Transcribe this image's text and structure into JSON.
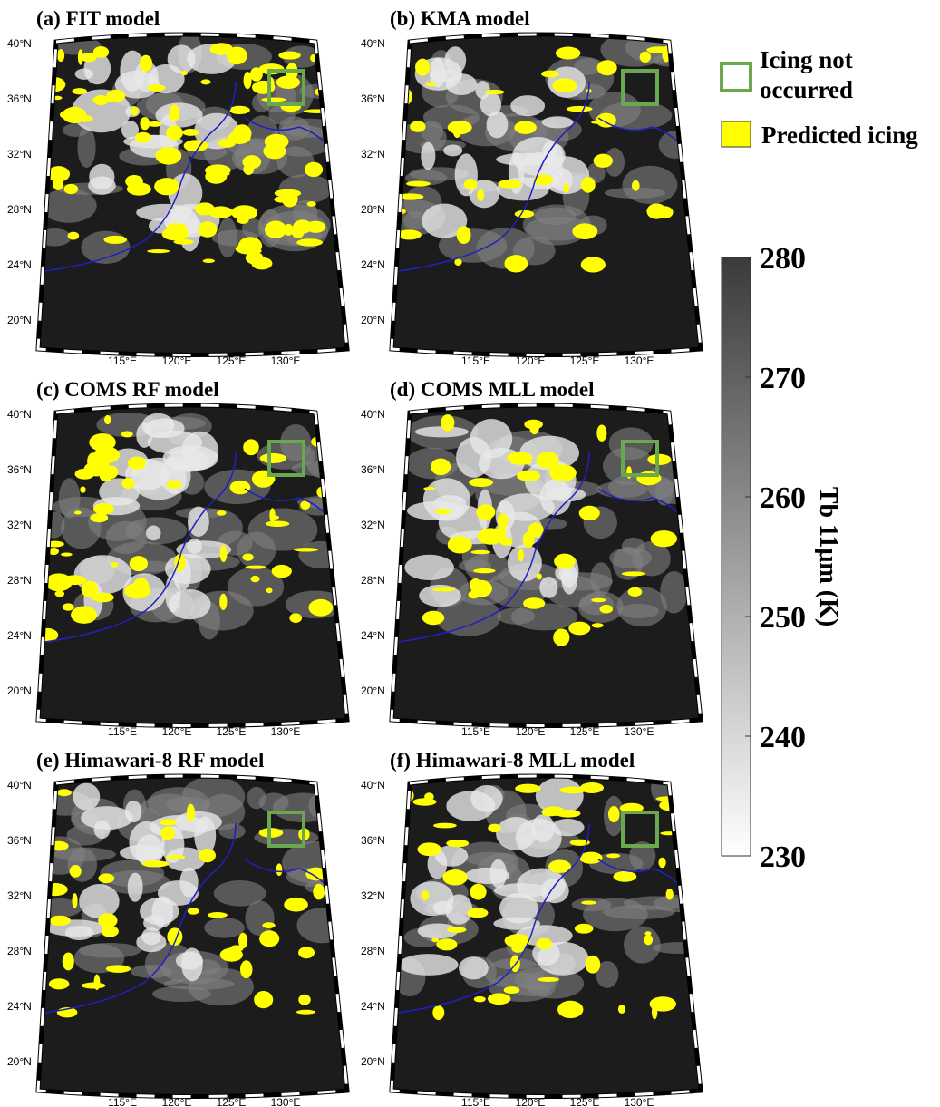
{
  "legend": {
    "not_occurred": "Icing not occurred",
    "predicted": "Predicted icing"
  },
  "panels": [
    {
      "title": "(a) FIT model"
    },
    {
      "title": "(b) KMA model"
    },
    {
      "title": "(c) COMS RF model"
    },
    {
      "title": "(d) COMS MLL model"
    },
    {
      "title": "(e) Himawari-8 RF model"
    },
    {
      "title": "(f) Himawari-8 MLL model"
    }
  ],
  "lat_labels": [
    "40°N",
    "36°N",
    "32°N",
    "28°N",
    "24°N",
    "20°N"
  ],
  "lon_labels": [
    "115°E",
    "120°E",
    "125°E",
    "130°E"
  ],
  "colorbar": {
    "label": "Tb 11μm (K)",
    "lim": [
      230,
      280
    ],
    "ticks": [
      230,
      240,
      250,
      260,
      270,
      280
    ]
  }
}
